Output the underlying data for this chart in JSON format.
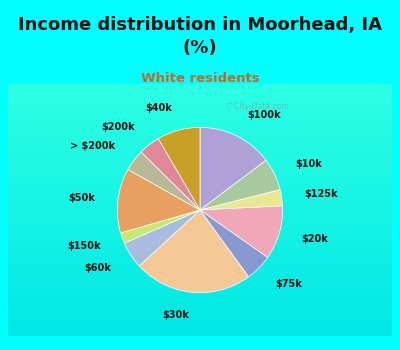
{
  "title": "Income distribution in Moorhead, IA\n(%)",
  "subtitle": "White residents",
  "title_color": "#111111",
  "subtitle_color": "#c86820",
  "cyan_color": "#00ffff",
  "chart_bg_color": "#d8ede4",
  "labels": [
    "$100k",
    "$10k",
    "$125k",
    "$20k",
    "$75k",
    "$30k",
    "$60k",
    "$150k",
    "$50k",
    "> $200k",
    "$200k",
    "$40k"
  ],
  "values": [
    14,
    6,
    3,
    10,
    5,
    22,
    5,
    2,
    12,
    4,
    4,
    8
  ],
  "colors": [
    "#b0a0d8",
    "#a8c8a0",
    "#e8e890",
    "#f0a8b8",
    "#8898d0",
    "#f5c898",
    "#a8bce0",
    "#c8e870",
    "#e8a060",
    "#b8b898",
    "#e08898",
    "#c8a028"
  ],
  "watermark": "ⓘ City-Data.com",
  "label_fontsize": 7,
  "title_fontsize": 13
}
